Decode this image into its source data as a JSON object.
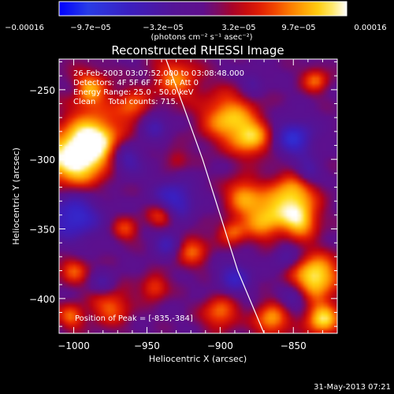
{
  "chart_data": {
    "type": "heatmap",
    "title": "Reconstructed RHESSI Image",
    "xlabel": "Heliocentric X (arcsec)",
    "ylabel": "Heliocentric Y (arcsec)",
    "xlim": [
      -1010,
      -820
    ],
    "ylim": [
      -425,
      -228
    ],
    "xticks": [
      -1000,
      -950,
      -900,
      -850
    ],
    "yticks": [
      -250,
      -300,
      -350,
      -400
    ],
    "xtick_labels": [
      "−1000",
      "−950",
      "−900",
      "−850"
    ],
    "ytick_labels": [
      "−250",
      "−300",
      "−350",
      "−400"
    ],
    "colorbar": {
      "min": -0.00016,
      "max": 0.00016,
      "tick_labels": [
        "−0.00016",
        "−9.7e−05",
        "−3.2e−05",
        "3.2e−05",
        "9.7e−05",
        "0.00016"
      ],
      "unit_label": "(photons cm⁻² s⁻¹ asec⁻²)"
    },
    "annotations": [
      "26-Feb-2003 03:07:52.000 to 03:08:48.000",
      "Detectors: 4F 5F 6F 7F 8F, Att 0",
      "Energy Range: 25.0 - 50.0 keV",
      "Clean     Total counts: 715."
    ],
    "peak_label": "Position of Peak = [-835,-384]",
    "peak": [
      -835,
      -384
    ],
    "limb_curve": [
      [
        -937,
        -228
      ],
      [
        -925,
        -262
      ],
      [
        -912,
        -300
      ],
      [
        -900,
        -340
      ],
      [
        -888,
        -380
      ],
      [
        -870,
        -425
      ]
    ],
    "hot_spots": [
      {
        "x": -1000,
        "y": -300,
        "v": 1.0,
        "r": 22
      },
      {
        "x": -985,
        "y": -285,
        "v": 0.8,
        "r": 18
      },
      {
        "x": -990,
        "y": -250,
        "v": 0.7,
        "r": 14
      },
      {
        "x": -960,
        "y": -262,
        "v": 0.55,
        "r": 12
      },
      {
        "x": -930,
        "y": -242,
        "v": 0.6,
        "r": 16
      },
      {
        "x": -895,
        "y": -270,
        "v": 0.75,
        "r": 18
      },
      {
        "x": -878,
        "y": -285,
        "v": 0.7,
        "r": 14
      },
      {
        "x": -835,
        "y": -243,
        "v": 0.55,
        "r": 9
      },
      {
        "x": -850,
        "y": -325,
        "v": 0.8,
        "r": 16
      },
      {
        "x": -870,
        "y": -342,
        "v": 0.75,
        "r": 16
      },
      {
        "x": -885,
        "y": -325,
        "v": 0.6,
        "r": 12
      },
      {
        "x": -940,
        "y": -340,
        "v": 0.6,
        "r": 10
      },
      {
        "x": -965,
        "y": -350,
        "v": 0.45,
        "r": 9
      },
      {
        "x": -920,
        "y": -365,
        "v": 0.55,
        "r": 12
      },
      {
        "x": -892,
        "y": -352,
        "v": 0.5,
        "r": 9
      },
      {
        "x": -835,
        "y": -384,
        "v": 0.95,
        "r": 16
      },
      {
        "x": -845,
        "y": -345,
        "v": 0.7,
        "r": 12
      },
      {
        "x": -1000,
        "y": -380,
        "v": 0.5,
        "r": 10
      },
      {
        "x": -975,
        "y": -405,
        "v": 0.55,
        "r": 14
      },
      {
        "x": -945,
        "y": -392,
        "v": 0.5,
        "r": 9
      },
      {
        "x": -900,
        "y": -410,
        "v": 0.6,
        "r": 12
      },
      {
        "x": -865,
        "y": -415,
        "v": 0.7,
        "r": 12
      },
      {
        "x": -830,
        "y": -415,
        "v": 0.85,
        "r": 12
      },
      {
        "x": -1002,
        "y": -413,
        "v": 0.55,
        "r": 9
      },
      {
        "x": -930,
        "y": -300,
        "v": 0.3,
        "r": 8
      }
    ],
    "cold_spots": [
      {
        "x": -1000,
        "y": -340,
        "v": 0.75,
        "r": 18
      },
      {
        "x": -965,
        "y": -300,
        "v": 0.55,
        "r": 12
      },
      {
        "x": -932,
        "y": -330,
        "v": 0.7,
        "r": 14
      },
      {
        "x": -935,
        "y": -360,
        "v": 0.55,
        "r": 10
      },
      {
        "x": -850,
        "y": -285,
        "v": 0.7,
        "r": 14
      },
      {
        "x": -840,
        "y": -310,
        "v": 0.5,
        "r": 9
      },
      {
        "x": -890,
        "y": -385,
        "v": 0.55,
        "r": 12
      },
      {
        "x": -850,
        "y": -400,
        "v": 0.45,
        "r": 9
      },
      {
        "x": -980,
        "y": -390,
        "v": 0.4,
        "r": 9
      },
      {
        "x": -945,
        "y": -275,
        "v": 0.45,
        "r": 10
      },
      {
        "x": -878,
        "y": -245,
        "v": 0.35,
        "r": 8
      },
      {
        "x": -1000,
        "y": -250,
        "v": 0.3,
        "r": 7
      },
      {
        "x": -855,
        "y": -370,
        "v": 0.4,
        "r": 9
      }
    ]
  },
  "footer_timestamp": "31-May-2013 07:21"
}
